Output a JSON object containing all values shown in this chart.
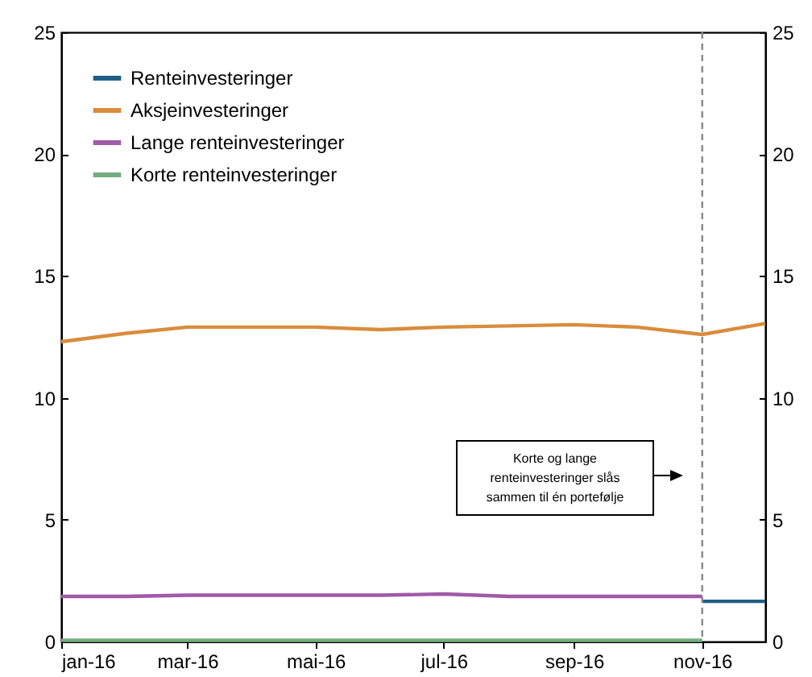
{
  "chart_data": {
    "type": "line",
    "x": [
      "2016-01",
      "2016-02",
      "2016-03",
      "2016-04",
      "2016-05",
      "2016-06",
      "2016-07",
      "2016-08",
      "2016-09",
      "2016-10",
      "2016-11",
      "2016-12"
    ],
    "series": [
      {
        "name": "Renteinvesteringer",
        "color": "#1f5f86",
        "values": [
          null,
          null,
          null,
          null,
          null,
          null,
          null,
          null,
          null,
          null,
          1.65,
          1.65
        ]
      },
      {
        "name": "Aksjeinvesteringer",
        "color": "#d98c3c",
        "values": [
          12.3,
          12.65,
          12.9,
          12.9,
          12.9,
          12.8,
          12.9,
          12.95,
          13.0,
          12.9,
          12.6,
          13.05
        ]
      },
      {
        "name": "Lange renteinvesteringer",
        "color": "#a05aa8",
        "values": [
          1.85,
          1.85,
          1.9,
          1.9,
          1.9,
          1.9,
          1.95,
          1.85,
          1.85,
          1.85,
          1.85,
          null
        ]
      },
      {
        "name": "Korte renteinvesteringer",
        "color": "#74ad7f",
        "values": [
          0.05,
          0.05,
          0.05,
          0.05,
          0.05,
          0.05,
          0.05,
          0.05,
          0.05,
          0.05,
          0.05,
          null
        ]
      }
    ],
    "xlim": [
      "2016-01",
      "2016-12"
    ],
    "xticks": [
      {
        "value": "2016-01",
        "label": "jan-16"
      },
      {
        "value": "2016-03",
        "label": "mar-16"
      },
      {
        "value": "2016-05",
        "label": "mai-16"
      },
      {
        "value": "2016-07",
        "label": "jul-16"
      },
      {
        "value": "2016-09",
        "label": "sep-16"
      },
      {
        "value": "2016-11",
        "label": "nov-16"
      }
    ],
    "ylim": [
      0,
      25
    ],
    "yticks": [
      0,
      5,
      10,
      15,
      20,
      25
    ],
    "y2lim": [
      0,
      25
    ],
    "y2ticks": [
      0,
      5,
      10,
      15,
      20,
      25
    ],
    "ref_lines": [
      {
        "axis": "x",
        "value": "2016-11",
        "color": "#888888",
        "line_style": "dashed"
      }
    ],
    "annotations": [
      "Korte og lange\nrenteinvesteringer slås\nsammen til én portefølje"
    ],
    "legend": "top left",
    "grid": false
  }
}
